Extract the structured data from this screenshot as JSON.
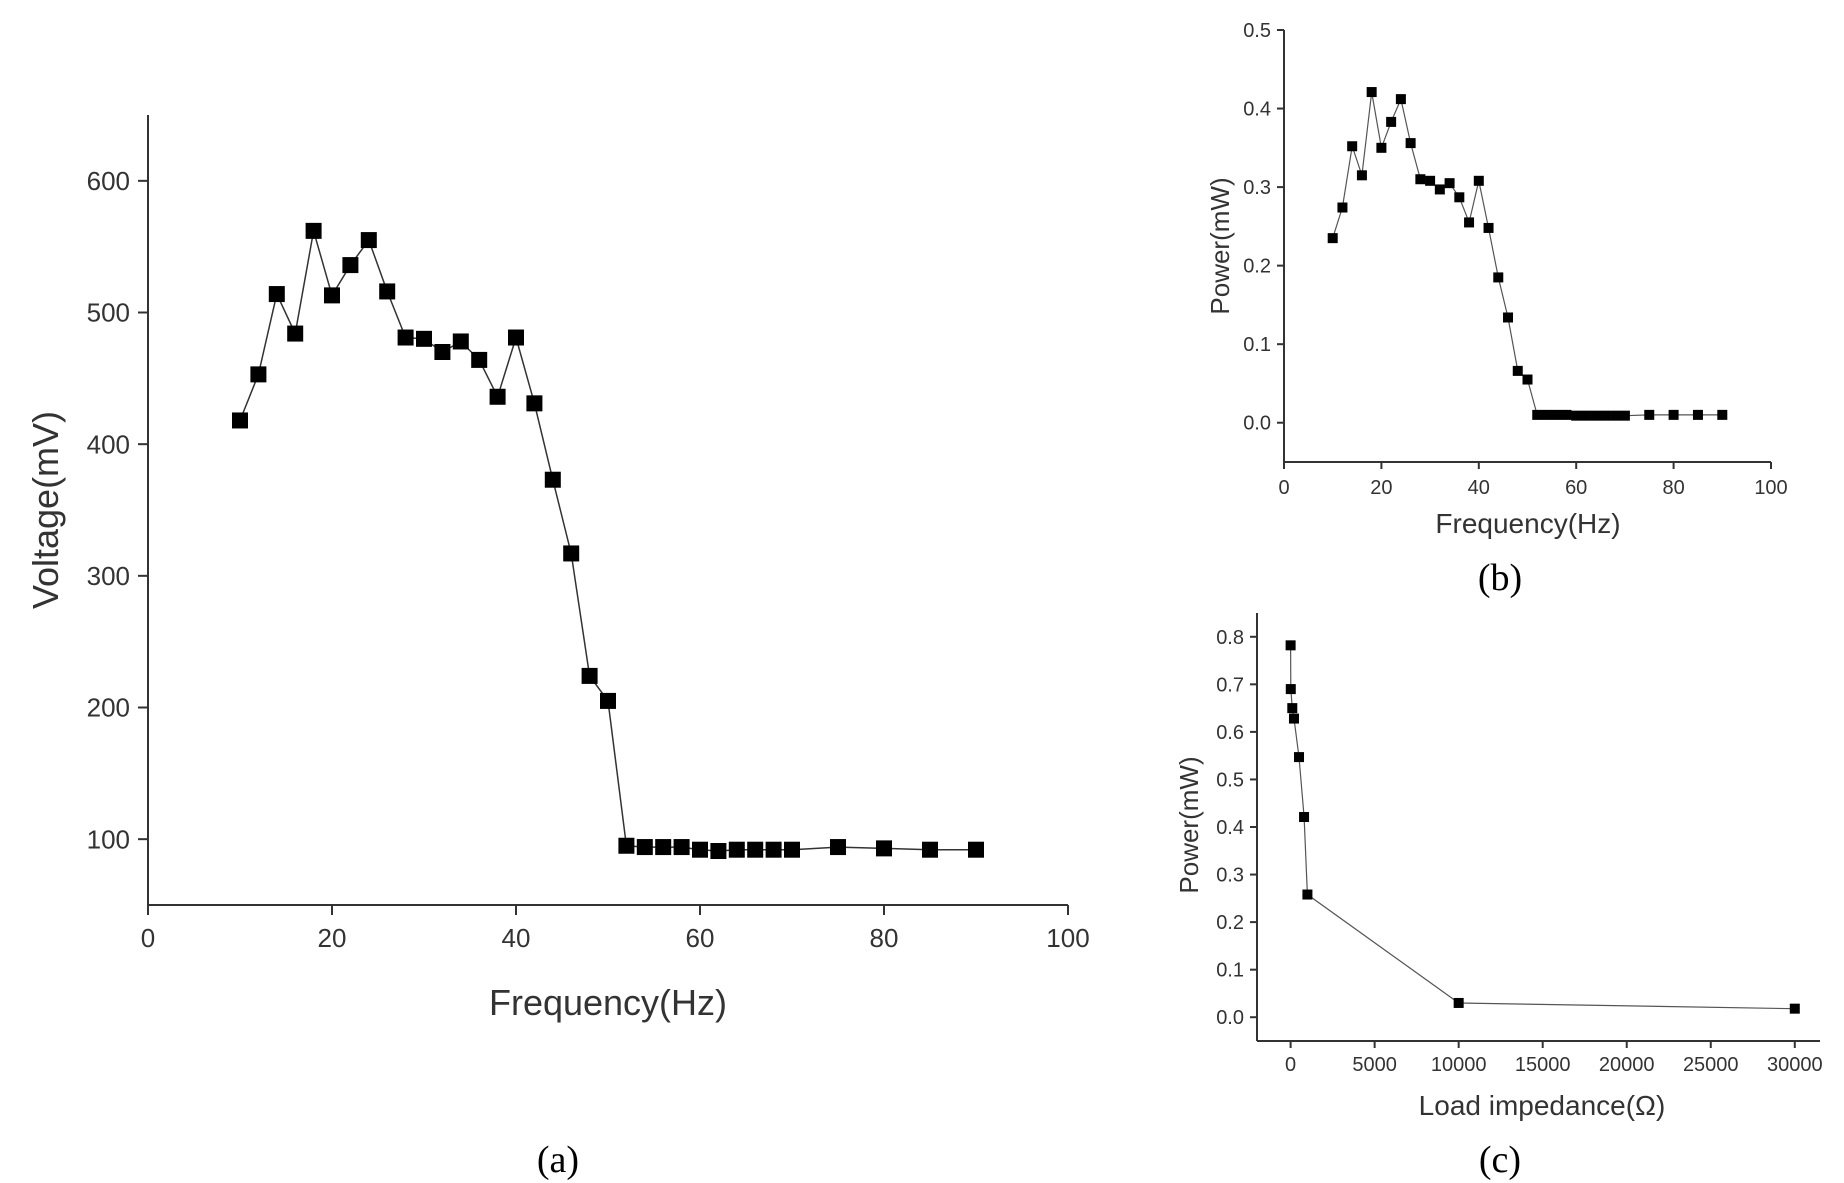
{
  "chart_data": [
    {
      "id": "a",
      "type": "line",
      "panel_label": "(a)",
      "xlabel": "Frequency(Hz)",
      "ylabel": "Voltage(mV)",
      "xlim": [
        0,
        100
      ],
      "ylim": [
        50,
        650
      ],
      "xticks": [
        0,
        20,
        40,
        60,
        80,
        100
      ],
      "yticks": [
        100,
        200,
        300,
        400,
        500,
        600
      ],
      "series": [
        {
          "name": "Voltage",
          "x": [
            10,
            12,
            14,
            16,
            18,
            20,
            22,
            24,
            26,
            28,
            30,
            32,
            34,
            36,
            38,
            40,
            42,
            44,
            46,
            48,
            50,
            52,
            54,
            56,
            58,
            60,
            62,
            64,
            66,
            68,
            70,
            75,
            80,
            85,
            90
          ],
          "y": [
            418,
            453,
            514,
            484,
            562,
            513,
            536,
            555,
            516,
            481,
            480,
            470,
            478,
            464,
            436,
            481,
            431,
            373,
            317,
            224,
            205,
            95,
            94,
            94,
            94,
            92,
            91,
            92,
            92,
            92,
            92,
            94,
            93,
            92,
            92
          ]
        }
      ]
    },
    {
      "id": "b",
      "type": "line",
      "panel_label": "(b)",
      "xlabel": "Frequency(Hz)",
      "ylabel": "Power(mW)",
      "xlim": [
        0,
        100
      ],
      "ylim": [
        -0.05,
        0.5
      ],
      "xticks": [
        0,
        20,
        40,
        60,
        80,
        100
      ],
      "yticks": [
        0.0,
        0.1,
        0.2,
        0.3,
        0.4,
        0.5
      ],
      "ytick_labels": [
        "0.0",
        "0.1",
        "0.2",
        "0.3",
        "0.4",
        "0.5"
      ],
      "series": [
        {
          "name": "Power",
          "x": [
            10,
            12,
            14,
            16,
            18,
            20,
            22,
            24,
            26,
            28,
            30,
            32,
            34,
            36,
            38,
            40,
            42,
            44,
            46,
            48,
            50,
            52,
            54,
            56,
            58,
            60,
            62,
            64,
            66,
            68,
            70,
            75,
            80,
            85,
            90
          ],
          "y": [
            0.235,
            0.274,
            0.352,
            0.315,
            0.421,
            0.35,
            0.383,
            0.412,
            0.356,
            0.31,
            0.308,
            0.297,
            0.305,
            0.287,
            0.255,
            0.308,
            0.248,
            0.185,
            0.134,
            0.066,
            0.055,
            0.01,
            0.01,
            0.01,
            0.01,
            0.009,
            0.009,
            0.009,
            0.009,
            0.009,
            0.009,
            0.01,
            0.01,
            0.01,
            0.01
          ]
        }
      ]
    },
    {
      "id": "c",
      "type": "line",
      "panel_label": "(c)",
      "xlabel": "Load impedance(Ω)",
      "ylabel": "Power(mW)",
      "xlim": [
        -2000,
        31500
      ],
      "ylim": [
        -0.05,
        0.85
      ],
      "xticks": [
        0,
        5000,
        10000,
        15000,
        20000,
        25000,
        30000
      ],
      "yticks": [
        0.0,
        0.1,
        0.2,
        0.3,
        0.4,
        0.5,
        0.6,
        0.7,
        0.8
      ],
      "ytick_labels": [
        "0.0",
        "0.1",
        "0.2",
        "0.3",
        "0.4",
        "0.5",
        "0.6",
        "0.7",
        "0.8"
      ],
      "series": [
        {
          "name": "Power",
          "x": [
            0,
            10,
            100,
            200,
            500,
            800,
            1000,
            10000,
            30000
          ],
          "y": [
            0.782,
            0.69,
            0.65,
            0.628,
            0.547,
            0.421,
            0.258,
            0.03,
            0.018
          ]
        }
      ]
    }
  ]
}
